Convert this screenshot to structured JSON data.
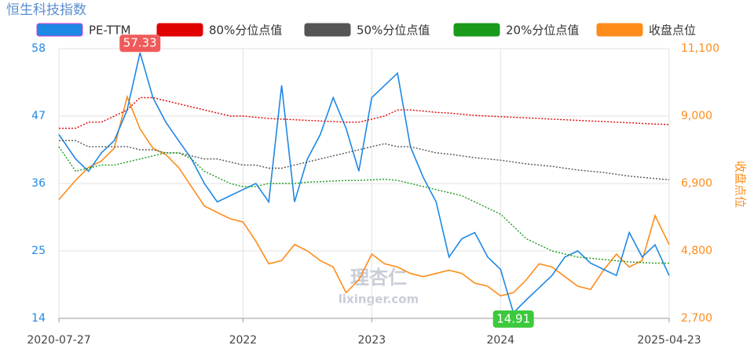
{
  "chart_data": {
    "type": "line",
    "title": "恒生科技指数",
    "x": [
      2020.57,
      2020.7,
      2020.8,
      2020.9,
      2021.0,
      2021.1,
      2021.2,
      2021.3,
      2021.4,
      2021.5,
      2021.6,
      2021.7,
      2021.8,
      2021.9,
      2022.0,
      2022.1,
      2022.2,
      2022.3,
      2022.4,
      2022.5,
      2022.6,
      2022.7,
      2022.8,
      2022.9,
      2023.0,
      2023.1,
      2023.2,
      2023.3,
      2023.4,
      2023.5,
      2023.6,
      2023.7,
      2023.8,
      2023.9,
      2024.0,
      2024.1,
      2024.2,
      2024.3,
      2024.4,
      2024.5,
      2024.6,
      2024.7,
      2024.8,
      2024.9,
      2025.0,
      2025.1,
      2025.2,
      2025.31
    ],
    "xlim": [
      2020.57,
      2025.31
    ],
    "xticks": [
      {
        "value": 2020.57,
        "label": "2020-07-27"
      },
      2022,
      2023,
      2024,
      {
        "value": 2025.31,
        "label": "2025-04-23"
      }
    ],
    "ylim": [
      14,
      58
    ],
    "yticks": [
      14,
      25,
      36,
      47,
      58
    ],
    "y2lim": [
      2700,
      11100
    ],
    "y2ticks": [
      {
        "value": 2700,
        "label": "2,700"
      },
      {
        "value": 4800,
        "label": "4,800"
      },
      {
        "value": 6900,
        "label": "6,900"
      },
      {
        "value": 9000,
        "label": "9,000"
      },
      {
        "value": 11100,
        "label": "11,100"
      }
    ],
    "y2label": "收盘点位",
    "grid": true,
    "series": [
      {
        "name": "PE-TTM",
        "color": "#1e88e5",
        "style": "solid",
        "values": [
          44,
          40,
          38,
          41,
          43,
          48,
          57.33,
          50,
          46,
          43,
          40,
          36,
          33,
          34,
          35,
          36,
          33,
          52,
          33,
          40,
          44,
          50,
          45,
          38,
          50,
          52,
          54,
          42,
          37,
          33,
          24,
          27,
          28,
          24,
          22,
          14.91,
          17,
          19,
          21,
          24,
          25,
          23,
          22,
          21,
          28,
          24,
          26,
          21
        ]
      },
      {
        "name": "80%分位点值",
        "color": "#e00000",
        "style": "dotted",
        "values": [
          45,
          45,
          46,
          46,
          47,
          48,
          50,
          50,
          49.5,
          49,
          48.5,
          48,
          47.5,
          47,
          47,
          46.8,
          46.6,
          46.5,
          46.4,
          46.3,
          46.2,
          46.1,
          46,
          46,
          46.5,
          47,
          48,
          48,
          47.8,
          47.6,
          47.5,
          47.3,
          47.1,
          47,
          46.9,
          46.8,
          46.7,
          46.6,
          46.5,
          46.4,
          46.3,
          46.2,
          46.1,
          46,
          45.9,
          45.8,
          45.7,
          45.6
        ]
      },
      {
        "name": "50%分位点值",
        "color": "#555555",
        "style": "dotted",
        "values": [
          43,
          43,
          42,
          42,
          42,
          42,
          41.5,
          41.5,
          41,
          41,
          40.5,
          40,
          40,
          39.5,
          39,
          39,
          38.5,
          38.5,
          39,
          39.5,
          40,
          40.5,
          41,
          41.5,
          42,
          42.5,
          42,
          42,
          41.5,
          41,
          40.8,
          40.5,
          40.2,
          40,
          39.8,
          39.5,
          39.2,
          39,
          38.8,
          38.5,
          38.2,
          38,
          37.8,
          37.5,
          37.2,
          37,
          36.8,
          36.6
        ]
      },
      {
        "name": "20%分位点值",
        "color": "#1a9a1a",
        "style": "dotted",
        "values": [
          42,
          38,
          38.5,
          39,
          39,
          39.5,
          40,
          40.5,
          41,
          41,
          40,
          38,
          37,
          36,
          35.5,
          35.5,
          36,
          36,
          36,
          36.2,
          36.3,
          36.4,
          36.5,
          36.5,
          36.6,
          36.7,
          36.5,
          36,
          35.5,
          35,
          34.5,
          34,
          33,
          32,
          31,
          29,
          27,
          26,
          25,
          24.5,
          24,
          23.8,
          23.6,
          23.4,
          23.2,
          23.1,
          23,
          23
        ]
      },
      {
        "name": "收盘点位",
        "color": "#ff8c1a",
        "style": "solid",
        "axis": "y2",
        "values": [
          6400,
          7000,
          7400,
          7600,
          8000,
          9600,
          8600,
          8000,
          7800,
          7400,
          6800,
          6200,
          6000,
          5800,
          5700,
          5100,
          4400,
          4500,
          5000,
          4800,
          4500,
          4300,
          3500,
          3900,
          4700,
          4400,
          4300,
          4100,
          4000,
          4100,
          4200,
          4100,
          3800,
          3700,
          3400,
          3500,
          3900,
          4400,
          4300,
          4000,
          3700,
          3600,
          4200,
          4700,
          4300,
          4500,
          5900,
          5000
        ]
      }
    ],
    "annotations": [
      {
        "x": 2021.2,
        "value": 57.33,
        "color": "#f05a5a"
      },
      {
        "x": 2024.1,
        "value": 14.91,
        "color": "#3cc93c"
      }
    ],
    "watermark": [
      "理杏仁",
      "lixinger.com"
    ]
  }
}
